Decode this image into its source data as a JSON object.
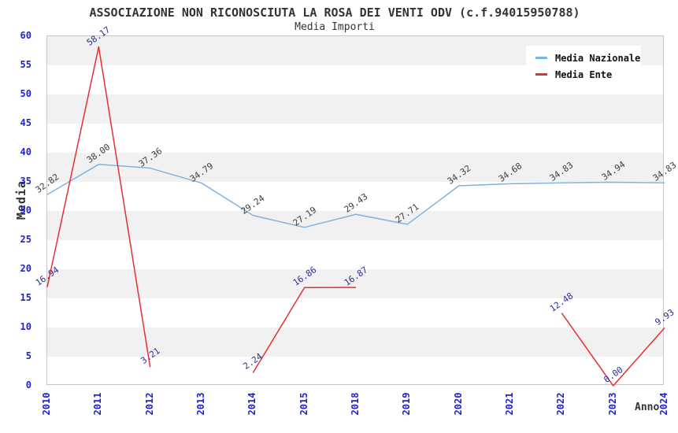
{
  "chart_data": {
    "type": "line",
    "title": "ASSOCIAZIONE NON RICONOSCIUTA LA ROSA DEI VENTI ODV (c.f.94015950788)",
    "subtitle": "Media Importi",
    "xlabel": "Anno",
    "ylabel": "Media",
    "ylim": [
      0,
      60
    ],
    "ytick_step": 5,
    "grid": "horizontal-bands",
    "legend_position": "top-right",
    "categories": [
      "2010",
      "2011",
      "2012",
      "2013",
      "2014",
      "2015",
      "2018",
      "2019",
      "2020",
      "2021",
      "2022",
      "2023",
      "2024"
    ],
    "series": [
      {
        "name": "Media Nazionale",
        "color": "#7fb3e0",
        "label_color": "#3c3c3c",
        "values": [
          32.82,
          38.0,
          37.36,
          34.79,
          29.24,
          27.19,
          29.43,
          27.71,
          34.32,
          34.68,
          34.83,
          34.94,
          34.83
        ]
      },
      {
        "name": "Media Ente",
        "color": "#e53030",
        "label_color": "#2b2b9e",
        "values": [
          16.94,
          58.17,
          3.21,
          null,
          2.24,
          16.86,
          16.87,
          null,
          null,
          null,
          12.48,
          0.0,
          9.93
        ]
      }
    ],
    "tick_color": "#2222cc"
  }
}
